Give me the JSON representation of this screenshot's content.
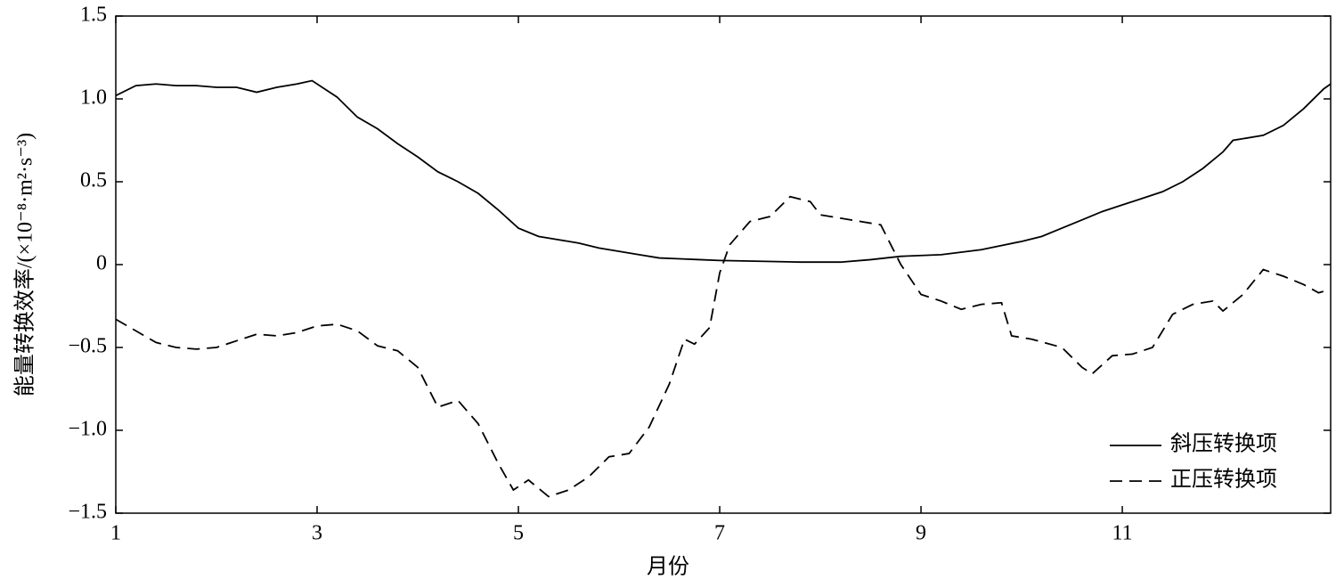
{
  "chart_data": {
    "type": "line",
    "xlabel": "月份",
    "ylabel": "能量转换效率/(×10⁻⁸·m²·s⁻³)",
    "xlim": [
      1,
      13.07
    ],
    "xticks": [
      1,
      3,
      5,
      7,
      9,
      11
    ],
    "ylim": [
      -1.5,
      1.5
    ],
    "yticks": [
      {
        "value": -1.5,
        "label": "−1.5"
      },
      {
        "value": -1,
        "label": "−1.0"
      },
      {
        "value": -0.5,
        "label": "−0.5"
      },
      0,
      0.5,
      {
        "value": 1,
        "label": "1.0"
      },
      1.5
    ],
    "legend": "lower right",
    "series": [
      {
        "name": "斜压转换项",
        "color": "#000000",
        "line_style": "solid",
        "x": [
          1,
          1.2,
          1.4,
          1.6,
          1.8,
          2.0,
          2.2,
          2.4,
          2.6,
          2.8,
          2.95,
          3.2,
          3.4,
          3.6,
          3.8,
          4.0,
          4.2,
          4.4,
          4.6,
          4.8,
          5.0,
          5.2,
          5.4,
          5.6,
          5.8,
          6.0,
          6.2,
          6.4,
          6.6,
          6.8,
          7.0,
          7.4,
          7.8,
          8.2,
          8.5,
          8.8,
          9.2,
          9.6,
          10.0,
          10.2,
          10.4,
          10.6,
          10.8,
          11.0,
          11.2,
          11.4,
          11.6,
          11.8,
          12.0,
          12.1,
          12.4,
          12.6,
          12.8,
          13.0,
          13.07
        ],
        "values": [
          1.02,
          1.08,
          1.09,
          1.08,
          1.08,
          1.07,
          1.07,
          1.04,
          1.07,
          1.09,
          1.11,
          1.01,
          0.89,
          0.82,
          0.73,
          0.65,
          0.56,
          0.5,
          0.43,
          0.33,
          0.22,
          0.17,
          0.15,
          0.13,
          0.1,
          0.08,
          0.06,
          0.04,
          0.035,
          0.03,
          0.025,
          0.02,
          0.015,
          0.015,
          0.03,
          0.05,
          0.06,
          0.09,
          0.14,
          0.17,
          0.22,
          0.27,
          0.32,
          0.36,
          0.4,
          0.44,
          0.5,
          0.58,
          0.68,
          0.75,
          0.78,
          0.84,
          0.94,
          1.06,
          1.09
        ]
      },
      {
        "name": "正压转换项",
        "color": "#000000",
        "line_style": "dashed",
        "x": [
          1,
          1.2,
          1.4,
          1.6,
          1.8,
          2.0,
          2.2,
          2.4,
          2.6,
          2.8,
          3.0,
          3.2,
          3.4,
          3.6,
          3.8,
          4.0,
          4.2,
          4.4,
          4.6,
          4.8,
          4.95,
          5.1,
          5.3,
          5.5,
          5.7,
          5.9,
          6.1,
          6.3,
          6.5,
          6.65,
          6.75,
          6.9,
          7.0,
          7.1,
          7.3,
          7.5,
          7.7,
          7.9,
          8.0,
          8.2,
          8.4,
          8.6,
          8.8,
          9.0,
          9.2,
          9.4,
          9.6,
          9.8,
          9.9,
          10.1,
          10.4,
          10.6,
          10.7,
          10.9,
          11.1,
          11.3,
          11.5,
          11.7,
          11.9,
          12.0,
          12.2,
          12.4,
          12.6,
          12.8,
          12.95,
          13.07
        ],
        "values": [
          -0.33,
          -0.4,
          -0.47,
          -0.5,
          -0.51,
          -0.5,
          -0.46,
          -0.42,
          -0.43,
          -0.41,
          -0.37,
          -0.36,
          -0.4,
          -0.49,
          -0.52,
          -0.62,
          -0.86,
          -0.82,
          -0.96,
          -1.2,
          -1.36,
          -1.3,
          -1.4,
          -1.36,
          -1.28,
          -1.16,
          -1.14,
          -0.98,
          -0.72,
          -0.45,
          -0.48,
          -0.38,
          -0.05,
          0.12,
          0.26,
          0.29,
          0.41,
          0.38,
          0.3,
          0.28,
          0.26,
          0.24,
          0.0,
          -0.18,
          -0.22,
          -0.27,
          -0.24,
          -0.23,
          -0.43,
          -0.45,
          -0.5,
          -0.62,
          -0.66,
          -0.55,
          -0.54,
          -0.5,
          -0.3,
          -0.24,
          -0.22,
          -0.28,
          -0.18,
          -0.03,
          -0.07,
          -0.12,
          -0.17,
          -0.15
        ]
      }
    ]
  }
}
